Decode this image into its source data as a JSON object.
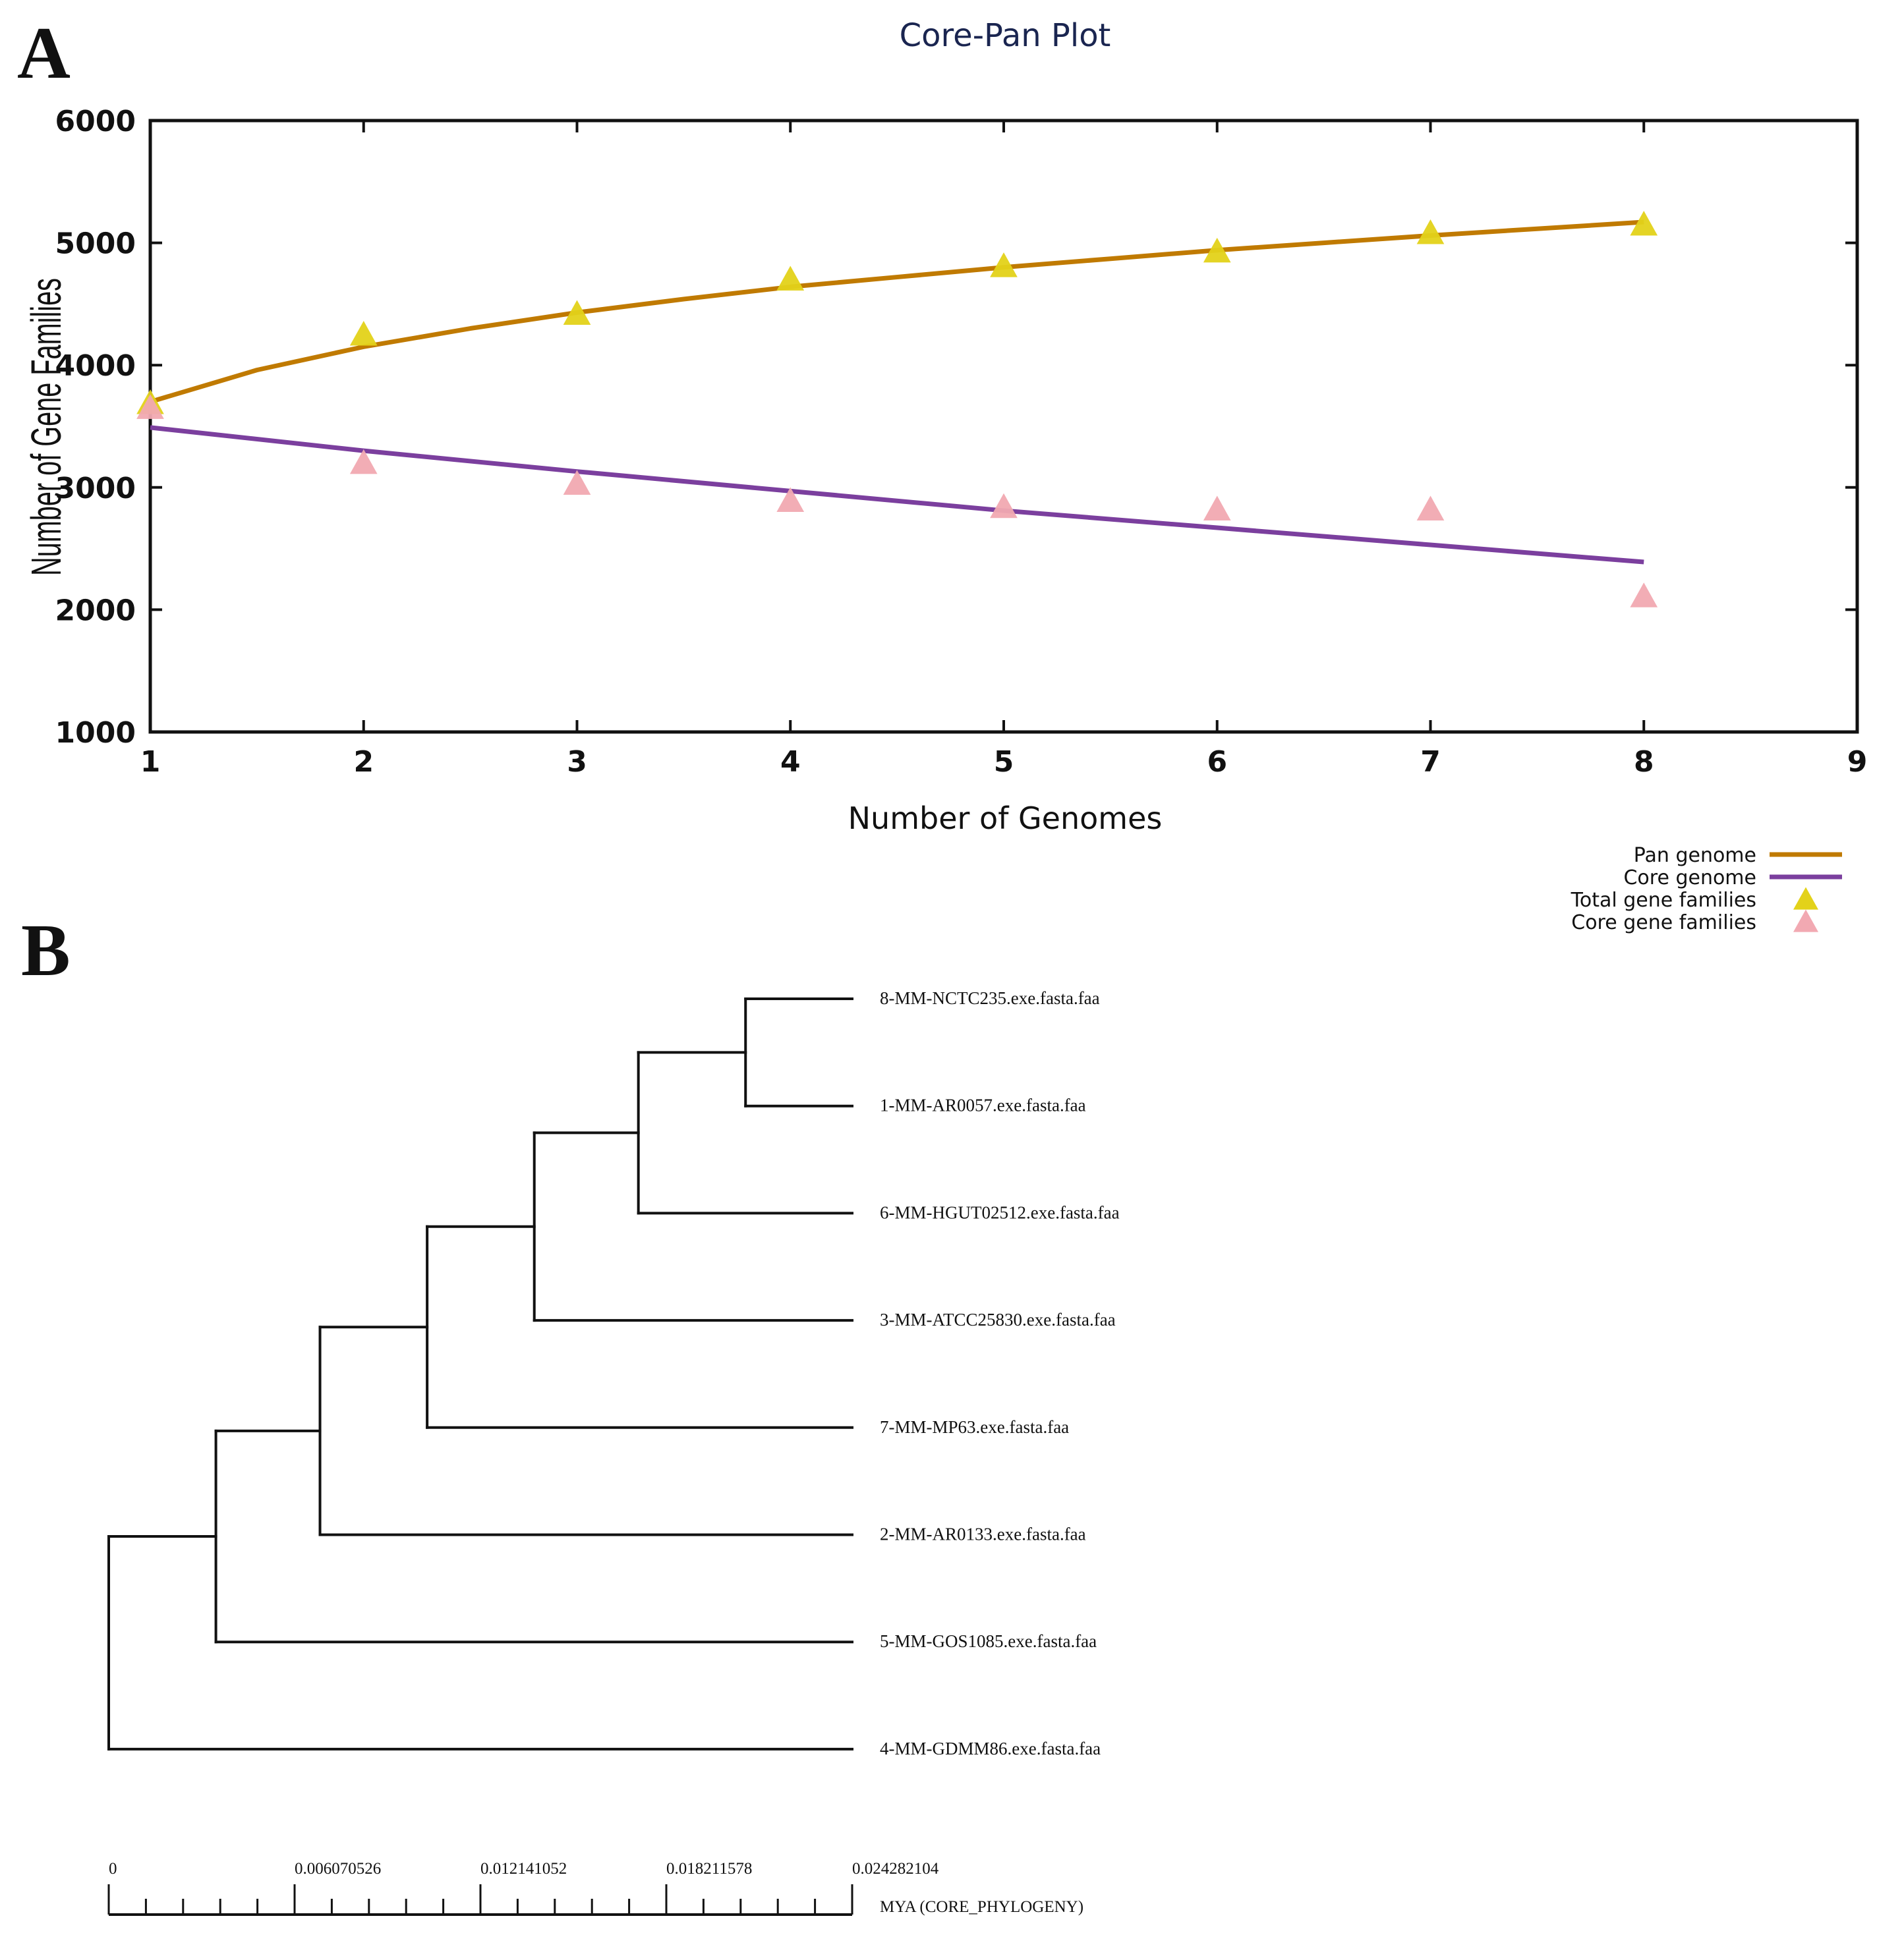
{
  "panel_a_label": "A",
  "panel_b_label": "B",
  "chart_data": [
    {
      "type": "line",
      "title": "Core-Pan Plot",
      "xlabel": "Number of Genomes",
      "ylabel": "Number of Gene Families",
      "xlim": [
        1,
        9
      ],
      "ylim": [
        1000,
        6000
      ],
      "x_ticks": [
        "1",
        "2",
        "3",
        "4",
        "5",
        "6",
        "7",
        "8",
        "9"
      ],
      "y_ticks": [
        "6000",
        "5000",
        "4000",
        "3000",
        "2000",
        "1000"
      ],
      "grid": false,
      "legend_position": "bottom-right",
      "series": [
        {
          "name": "Pan genome",
          "kind": "line",
          "color": "#c07a00",
          "x": [
            1,
            1.5,
            2,
            2.5,
            3,
            3.5,
            4,
            4.5,
            5,
            5.5,
            6,
            6.5,
            7,
            7.5,
            8
          ],
          "y": [
            3700,
            3960,
            4150,
            4300,
            4430,
            4540,
            4640,
            4720,
            4800,
            4870,
            4940,
            5000,
            5060,
            5115,
            5170
          ]
        },
        {
          "name": "Core genome",
          "kind": "line",
          "color": "#7b3f9e",
          "x": [
            1,
            2,
            3,
            4,
            5,
            6,
            7,
            8
          ],
          "y": [
            3490,
            3300,
            3130,
            2970,
            2810,
            2670,
            2530,
            2390
          ]
        },
        {
          "name": "Total gene families",
          "kind": "markers",
          "color": "#e3d21a",
          "x": [
            1,
            2,
            3,
            4,
            5,
            6,
            7,
            8
          ],
          "y": [
            3680,
            4240,
            4410,
            4690,
            4800,
            4920,
            5070,
            5140
          ]
        },
        {
          "name": "Core gene families",
          "kind": "markers",
          "color": "#f2a9b2",
          "x": [
            1,
            2,
            3,
            4,
            5,
            6,
            7,
            8
          ],
          "y": [
            3640,
            3190,
            3020,
            2880,
            2830,
            2810,
            2810,
            2100
          ]
        }
      ]
    },
    {
      "type": "dendrogram",
      "axis_label": "MYA (CORE_PHYLOGENY)",
      "scale_range": [
        0,
        0.024282104
      ],
      "scale_ticks": [
        "0",
        "0.006070526",
        "0.012141052",
        "0.018211578",
        "0.024282104"
      ],
      "leaves": [
        "8-MM-NCTC235.exe.fasta.faa",
        "1-MM-AR0057.exe.fasta.faa",
        "6-MM-HGUT02512.exe.fasta.faa",
        "3-MM-ATCC25830.exe.fasta.faa",
        "7-MM-MP63.exe.fasta.faa",
        "2-MM-AR0133.exe.fasta.faa",
        "5-MM-GOS1085.exe.fasta.faa",
        "4-MM-GDMM86.exe.fasta.faa"
      ],
      "nodes": [
        {
          "children": [
            0,
            1
          ],
          "depth": 0.0208
        },
        {
          "children": [
            8,
            2
          ],
          "depth": 0.0173
        },
        {
          "children": [
            9,
            3
          ],
          "depth": 0.0139
        },
        {
          "children": [
            10,
            4
          ],
          "depth": 0.0104
        },
        {
          "children": [
            11,
            5
          ],
          "depth": 0.0069
        },
        {
          "children": [
            12,
            6
          ],
          "depth": 0.0035
        },
        {
          "children": [
            13,
            7
          ],
          "depth": 0.0
        }
      ]
    }
  ]
}
